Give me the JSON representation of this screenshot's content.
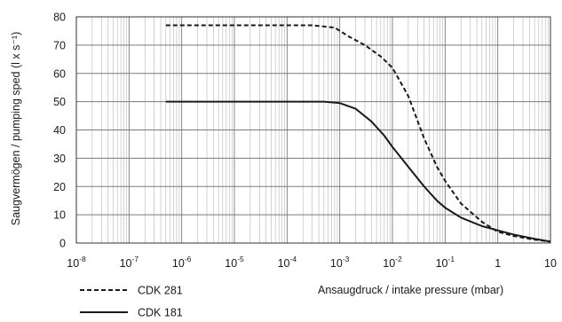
{
  "chart_data": {
    "type": "line",
    "title": "",
    "xlabel": "Ansaugdruck / intake pressure (mbar)",
    "ylabel": "Saugvermögen / pumping sped (l x s⁻¹)",
    "xscale": "log",
    "xlim": [
      1e-08,
      10
    ],
    "ylim": [
      0,
      80
    ],
    "grid": true,
    "legend_position": "bottom-left",
    "x_ticks": [
      {
        "value": 1e-08,
        "base": "10",
        "exp": "-8"
      },
      {
        "value": 1e-07,
        "base": "10",
        "exp": "-7"
      },
      {
        "value": 1e-06,
        "base": "10",
        "exp": "-6"
      },
      {
        "value": 1e-05,
        "base": "10",
        "exp": "-5"
      },
      {
        "value": 0.0001,
        "base": "10",
        "exp": "-4"
      },
      {
        "value": 0.001,
        "base": "10",
        "exp": "-3"
      },
      {
        "value": 0.01,
        "base": "10",
        "exp": "-2"
      },
      {
        "value": 0.1,
        "base": "10",
        "exp": "-1"
      },
      {
        "value": 1,
        "base": "1",
        "exp": ""
      },
      {
        "value": 10,
        "base": "10",
        "exp": ""
      }
    ],
    "y_ticks": [
      0,
      10,
      20,
      30,
      40,
      50,
      60,
      70,
      80
    ],
    "series": [
      {
        "name": "CDK 281",
        "style": "dashed",
        "color": "#1a1a1a",
        "points": [
          [
            5e-07,
            77
          ],
          [
            1e-06,
            77
          ],
          [
            1e-05,
            77
          ],
          [
            0.0001,
            77
          ],
          [
            0.0003,
            77
          ],
          [
            0.0008,
            76.2
          ],
          [
            0.0015,
            73
          ],
          [
            0.003,
            70
          ],
          [
            0.006,
            66
          ],
          [
            0.01,
            62
          ],
          [
            0.02,
            52
          ],
          [
            0.04,
            37
          ],
          [
            0.07,
            27
          ],
          [
            0.1,
            22
          ],
          [
            0.2,
            14
          ],
          [
            0.5,
            7.5
          ],
          [
            1,
            4
          ],
          [
            2,
            2.5
          ],
          [
            5,
            1.2
          ],
          [
            10,
            0.5
          ]
        ]
      },
      {
        "name": "CDK 181",
        "style": "solid",
        "color": "#1a1a1a",
        "points": [
          [
            5e-07,
            50
          ],
          [
            1e-06,
            50
          ],
          [
            1e-05,
            50
          ],
          [
            0.0001,
            50
          ],
          [
            0.0005,
            50
          ],
          [
            0.001,
            49.5
          ],
          [
            0.002,
            47.5
          ],
          [
            0.004,
            43
          ],
          [
            0.007,
            38
          ],
          [
            0.01,
            34
          ],
          [
            0.02,
            27
          ],
          [
            0.04,
            20
          ],
          [
            0.07,
            15
          ],
          [
            0.1,
            12.5
          ],
          [
            0.2,
            9
          ],
          [
            0.5,
            6
          ],
          [
            1,
            4.5
          ],
          [
            2,
            3
          ],
          [
            5,
            1.5
          ],
          [
            10,
            0.5
          ]
        ]
      }
    ]
  }
}
